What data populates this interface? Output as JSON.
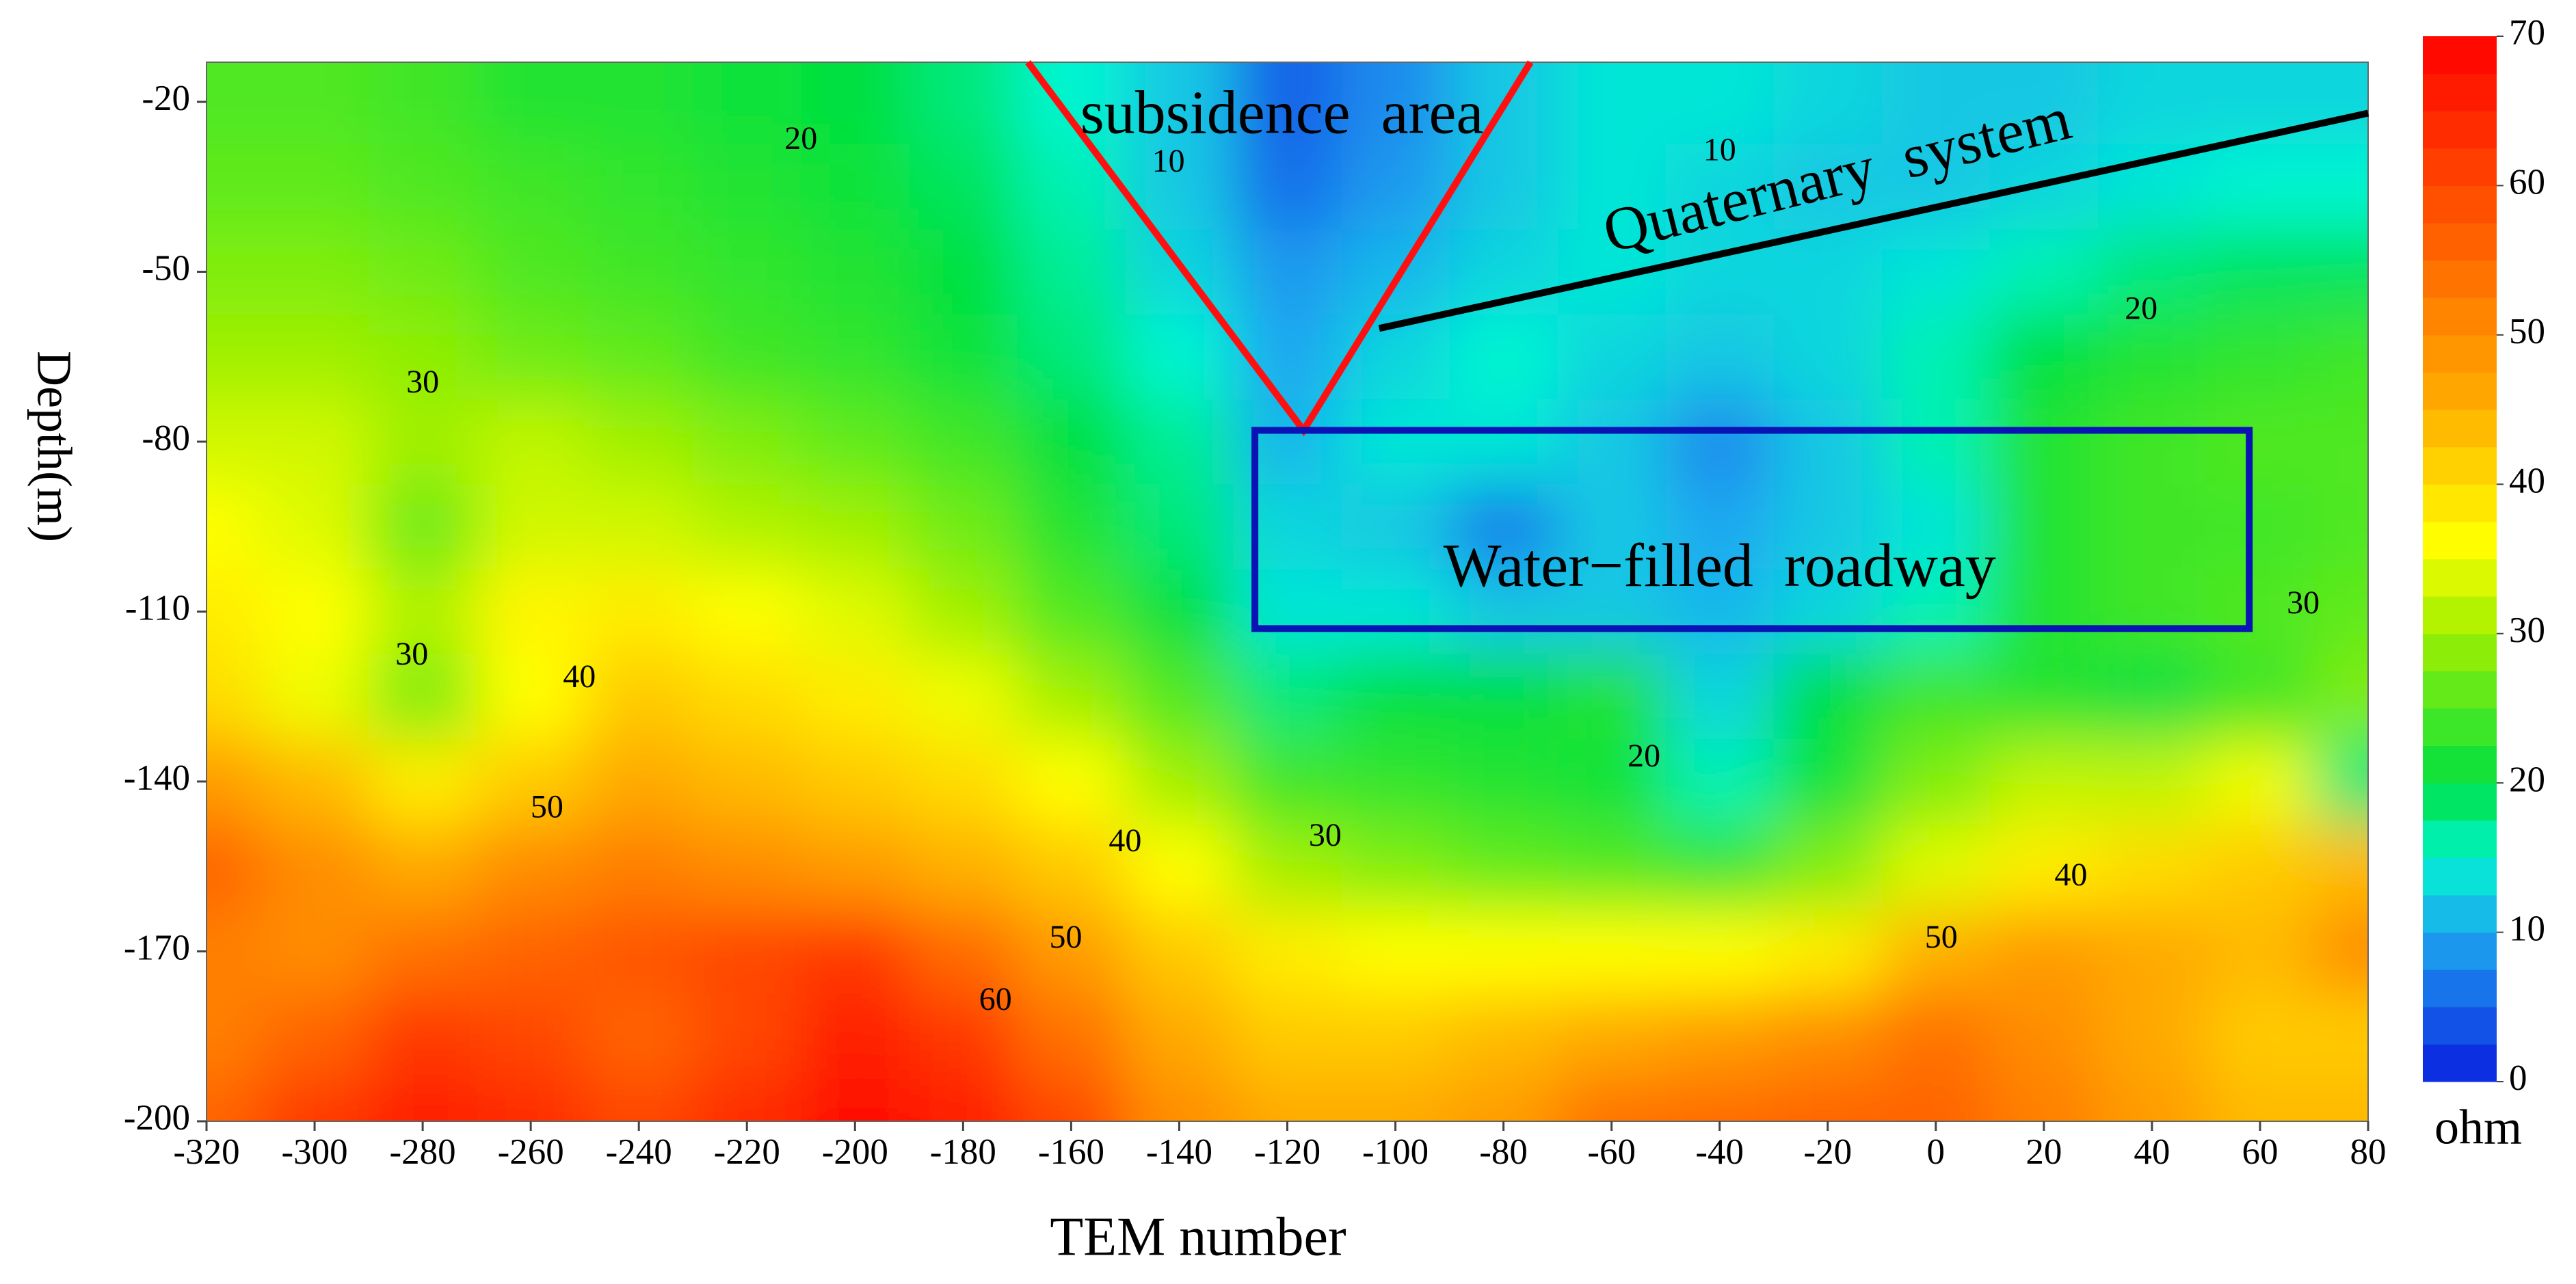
{
  "chart_data": {
    "type": "contour",
    "xlabel": "TEM number",
    "ylabel": "Depth(m)",
    "colorbar_label": "ohm",
    "xlim": [
      -320,
      80
    ],
    "ylim": [
      -200,
      -13
    ],
    "xticks": [
      -320,
      -300,
      -280,
      -260,
      -240,
      -220,
      -200,
      -180,
      -160,
      -140,
      -120,
      -100,
      -80,
      -60,
      -40,
      -20,
      0,
      20,
      40,
      60,
      80
    ],
    "yticks": [
      -20,
      -50,
      -80,
      -110,
      -140,
      -170,
      -200
    ],
    "clim": [
      0,
      70
    ],
    "cticks": [
      0,
      10,
      20,
      30,
      40,
      50,
      60,
      70
    ],
    "colorscale": [
      [
        0,
        "#0a1ee0"
      ],
      [
        10,
        "#1ea8f0"
      ],
      [
        15,
        "#00f5d0"
      ],
      [
        20,
        "#00e040"
      ],
      [
        30,
        "#a0f000"
      ],
      [
        36,
        "#ffff00"
      ],
      [
        45,
        "#ffb000"
      ],
      [
        55,
        "#ff6a00"
      ],
      [
        70,
        "#ff0000"
      ]
    ],
    "x": [
      -320,
      -300,
      -280,
      -260,
      -240,
      -220,
      -200,
      -180,
      -160,
      -140,
      -120,
      -100,
      -80,
      -60,
      -40,
      -20,
      0,
      20,
      40,
      60,
      80
    ],
    "y": [
      -20,
      -35,
      -50,
      -65,
      -80,
      -95,
      -110,
      -125,
      -140,
      -155,
      -170,
      -185,
      -200
    ],
    "z": [
      [
        25,
        25,
        24,
        22,
        22,
        21,
        20,
        18,
        15,
        12,
        5,
        8,
        12,
        14,
        14,
        13,
        12,
        12,
        13,
        13,
        13
      ],
      [
        26,
        26,
        25,
        24,
        23,
        22,
        21,
        19,
        16,
        12,
        6,
        9,
        12,
        14,
        13,
        12,
        12,
        13,
        14,
        15,
        15
      ],
      [
        28,
        28,
        27,
        25,
        24,
        23,
        22,
        20,
        17,
        13,
        9,
        11,
        13,
        14,
        13,
        13,
        14,
        16,
        18,
        19,
        19
      ],
      [
        30,
        30,
        29,
        27,
        26,
        24,
        23,
        21,
        18,
        15,
        10,
        13,
        15,
        13,
        12,
        13,
        16,
        20,
        22,
        23,
        24
      ],
      [
        33,
        33,
        30,
        32,
        30,
        28,
        26,
        24,
        20,
        17,
        11,
        14,
        14,
        12,
        8,
        12,
        16,
        22,
        24,
        25,
        25
      ],
      [
        36,
        34,
        27,
        33,
        33,
        31,
        30,
        27,
        22,
        18,
        13,
        12,
        7,
        12,
        10,
        12,
        14,
        22,
        24,
        24,
        25
      ],
      [
        38,
        36,
        31,
        37,
        38,
        36,
        34,
        30,
        25,
        20,
        14,
        14,
        12,
        12,
        11,
        13,
        16,
        22,
        24,
        25,
        26
      ],
      [
        40,
        35,
        28,
        36,
        42,
        40,
        38,
        35,
        30,
        25,
        18,
        20,
        20,
        22,
        13,
        20,
        24,
        22,
        20,
        24,
        28
      ],
      [
        48,
        44,
        38,
        42,
        46,
        44,
        42,
        40,
        36,
        30,
        24,
        23,
        22,
        21,
        16,
        21,
        28,
        32,
        32,
        35,
        18
      ],
      [
        56,
        50,
        46,
        50,
        52,
        50,
        48,
        45,
        42,
        36,
        30,
        28,
        26,
        25,
        23,
        28,
        34,
        38,
        40,
        42,
        44
      ],
      [
        52,
        50,
        54,
        56,
        58,
        60,
        62,
        55,
        48,
        42,
        38,
        36,
        36,
        36,
        36,
        38,
        45,
        48,
        46,
        44,
        50
      ],
      [
        52,
        56,
        62,
        60,
        56,
        60,
        66,
        62,
        54,
        46,
        42,
        42,
        44,
        46,
        48,
        50,
        54,
        50,
        46,
        42,
        42
      ],
      [
        56,
        62,
        66,
        64,
        60,
        64,
        68,
        66,
        60,
        50,
        46,
        46,
        48,
        54,
        55,
        56,
        56,
        52,
        48,
        44,
        44
      ]
    ],
    "contour_labels": [
      {
        "text": "20",
        "x": -210,
        "y": -27
      },
      {
        "text": "10",
        "x": -142,
        "y": -31
      },
      {
        "text": "10",
        "x": -40,
        "y": -29
      },
      {
        "text": "20",
        "x": 38,
        "y": -57
      },
      {
        "text": "30",
        "x": -280,
        "y": -70
      },
      {
        "text": "30",
        "x": -282,
        "y": -118
      },
      {
        "text": "40",
        "x": -251,
        "y": -122
      },
      {
        "text": "50",
        "x": -257,
        "y": -145
      },
      {
        "text": "40",
        "x": -150,
        "y": -151
      },
      {
        "text": "30",
        "x": -113,
        "y": -150
      },
      {
        "text": "20",
        "x": -54,
        "y": -136
      },
      {
        "text": "50",
        "x": -161,
        "y": -168
      },
      {
        "text": "60",
        "x": -174,
        "y": -179
      },
      {
        "text": "50",
        "x": 1,
        "y": -168
      },
      {
        "text": "40",
        "x": 25,
        "y": -157
      },
      {
        "text": "30",
        "x": 68,
        "y": -109
      }
    ],
    "annotations": [
      {
        "text": "subsidence  area",
        "x": -121,
        "y": -23
      },
      {
        "text": "Quaternary  system",
        "x": -18,
        "y": -34
      },
      {
        "text": "Water−filled  roadway",
        "x": -40,
        "y": -103
      }
    ],
    "shapes": [
      {
        "kind": "polyline",
        "color": "#ff1010",
        "points": [
          [
            -168,
            -13
          ],
          [
            -117,
            -78
          ],
          [
            -75,
            -13
          ]
        ]
      },
      {
        "kind": "polyline",
        "color": "#000000",
        "points": [
          [
            -103,
            -60
          ],
          [
            80,
            -22
          ]
        ]
      },
      {
        "kind": "rect",
        "color": "#0a14b4",
        "x0": -126,
        "x1": 58,
        "y0": -113,
        "y1": -78
      }
    ]
  }
}
